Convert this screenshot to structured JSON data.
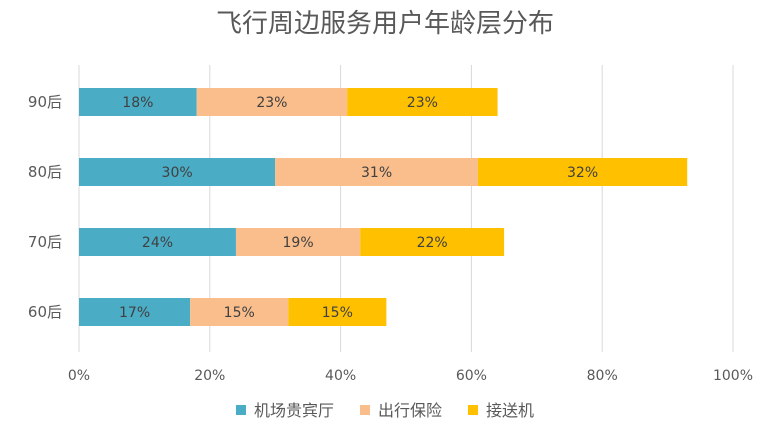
{
  "chart_data": {
    "type": "bar",
    "orientation": "horizontal",
    "stacked": true,
    "title": "飞行周边服务用户年龄层分布",
    "categories": [
      "90后",
      "80后",
      "70后",
      "60后"
    ],
    "series": [
      {
        "name": "机场贵宾厅",
        "color": "#4bacc6",
        "values": [
          18,
          30,
          24,
          17
        ],
        "labels": [
          "18%",
          "30%",
          "24%",
          "17%"
        ]
      },
      {
        "name": "出行保险",
        "color": "#f9be8c",
        "values": [
          23,
          31,
          19,
          15
        ],
        "labels": [
          "23%",
          "31%",
          "19%",
          "15%"
        ]
      },
      {
        "name": "接送机",
        "color": "#ffc000",
        "values": [
          23,
          32,
          22,
          15
        ],
        "labels": [
          "23%",
          "32%",
          "22%",
          "15%"
        ]
      }
    ],
    "xlim": [
      0,
      100
    ],
    "xticks": [
      0,
      20,
      40,
      60,
      80,
      100
    ],
    "xtick_labels": [
      "0%",
      "20%",
      "40%",
      "60%",
      "80%",
      "100%"
    ],
    "grid": true,
    "legend_position": "bottom"
  }
}
